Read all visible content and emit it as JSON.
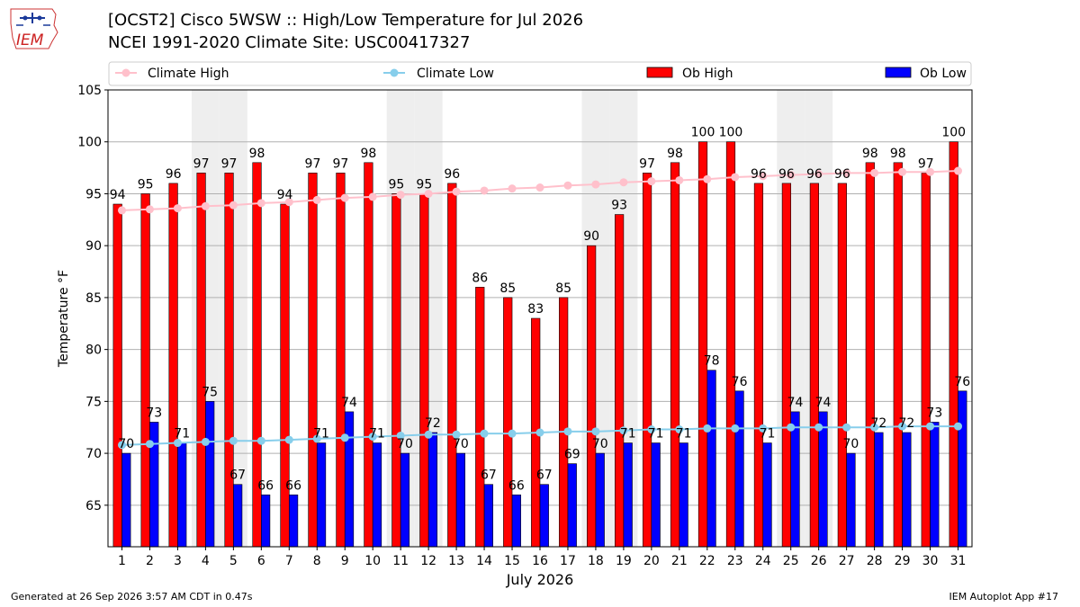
{
  "header": {
    "title_line1": "[OCST2] Cisco 5WSW :: High/Low Temperature for Jul 2026",
    "title_line2": "NCEI 1991-2020 Climate Site: USC00417327",
    "logo_text": "IEM"
  },
  "footer": {
    "generated": "Generated at 26 Sep 2026 3:57 AM CDT in 0.47s",
    "app": "IEM Autoplot App #17"
  },
  "colors": {
    "ob_high": "#ff0000",
    "ob_low": "#0000ff",
    "climate_high": "#ffc0cb",
    "climate_low": "#87ceeb",
    "weekend_shade": "#eeeeee"
  },
  "chart_data": {
    "type": "bar",
    "xlabel": "July 2026",
    "ylabel": "Temperature °F",
    "ylim": [
      61,
      105
    ],
    "yticks": [
      65,
      70,
      75,
      80,
      85,
      90,
      95,
      100,
      105
    ],
    "grid": true,
    "legend_placement": "top",
    "categories": [
      1,
      2,
      3,
      4,
      5,
      6,
      7,
      8,
      9,
      10,
      11,
      12,
      13,
      14,
      15,
      16,
      17,
      18,
      19,
      20,
      21,
      22,
      23,
      24,
      25,
      26,
      27,
      28,
      29,
      30,
      31
    ],
    "shaded_days": [
      4,
      5,
      11,
      12,
      18,
      19,
      25,
      26
    ],
    "series": [
      {
        "name": "Climate High",
        "kind": "line",
        "values": [
          93.4,
          93.5,
          93.6,
          93.8,
          93.9,
          94.1,
          94.2,
          94.4,
          94.6,
          94.7,
          94.9,
          95.0,
          95.2,
          95.3,
          95.5,
          95.6,
          95.8,
          95.9,
          96.1,
          96.2,
          96.3,
          96.4,
          96.6,
          96.7,
          96.8,
          96.9,
          97.0,
          97.0,
          97.1,
          97.1,
          97.2
        ]
      },
      {
        "name": "Climate Low",
        "kind": "line",
        "values": [
          70.8,
          70.9,
          71.0,
          71.1,
          71.2,
          71.2,
          71.3,
          71.4,
          71.5,
          71.6,
          71.7,
          71.8,
          71.8,
          71.9,
          71.9,
          72.0,
          72.1,
          72.1,
          72.2,
          72.3,
          72.3,
          72.4,
          72.4,
          72.4,
          72.5,
          72.5,
          72.5,
          72.5,
          72.6,
          72.6,
          72.6
        ]
      },
      {
        "name": "Ob High",
        "kind": "bar",
        "values": [
          94,
          95,
          96,
          97,
          97,
          98,
          94,
          97,
          97,
          98,
          95,
          95,
          96,
          86,
          85,
          83,
          85,
          90,
          93,
          97,
          98,
          100,
          100,
          96,
          96,
          96,
          96,
          98,
          98,
          97,
          100
        ]
      },
      {
        "name": "Ob Low",
        "kind": "bar",
        "values": [
          70,
          73,
          71,
          75,
          67,
          66,
          66,
          71,
          74,
          71,
          70,
          72,
          70,
          67,
          66,
          67,
          69,
          70,
          71,
          71,
          71,
          78,
          76,
          71,
          74,
          74,
          70,
          72,
          72,
          73,
          76
        ]
      }
    ]
  }
}
